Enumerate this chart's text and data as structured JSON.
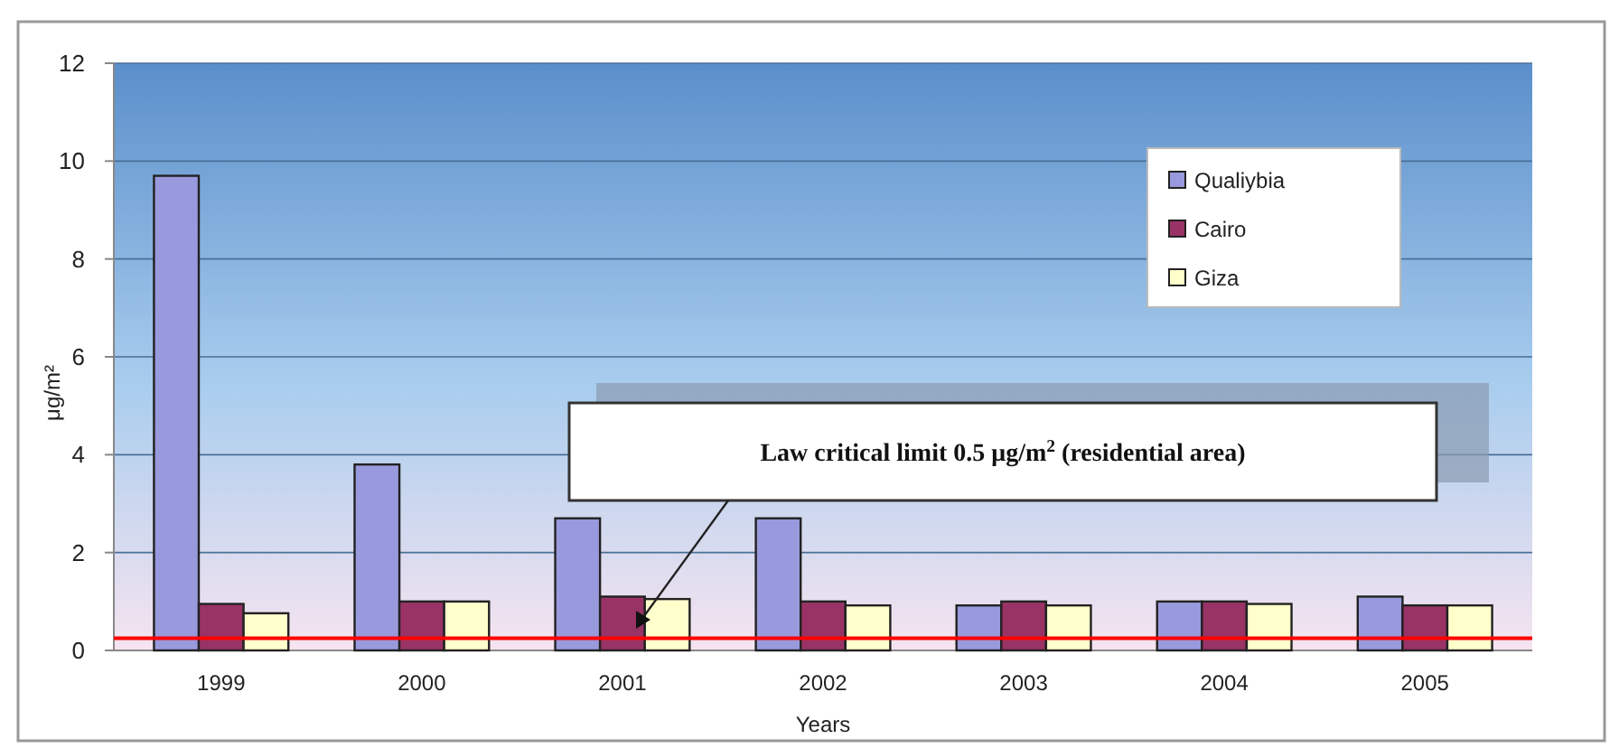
{
  "chart_data": {
    "type": "bar",
    "xlabel": "Years",
    "ylabel": "μg/m²",
    "categories": [
      "1999",
      "2000",
      "2001",
      "2002",
      "2003",
      "2004",
      "2005"
    ],
    "series": [
      {
        "name": "Qualiybia",
        "color": "#9999dd",
        "values": [
          9.7,
          3.8,
          2.7,
          2.7,
          0.92,
          1.0,
          1.1
        ]
      },
      {
        "name": "Cairo",
        "color": "#993366",
        "values": [
          0.95,
          1.0,
          1.1,
          1.0,
          1.0,
          1.0,
          0.92
        ]
      },
      {
        "name": "Giza",
        "color": "#ffffcc",
        "values": [
          0.76,
          1.0,
          1.05,
          0.92,
          0.92,
          0.95,
          0.92
        ]
      }
    ],
    "ylim": [
      0,
      12
    ],
    "yticks": [
      0,
      2,
      4,
      6,
      8,
      10,
      12
    ],
    "grid": "y",
    "legend": "top right",
    "ref_lines": [
      {
        "axis": "y",
        "value": 0.25,
        "color": "#ff0000"
      }
    ],
    "annotations": [
      "Law critical limit 0.5 μg/m$^{2}$ (residential area)"
    ]
  }
}
